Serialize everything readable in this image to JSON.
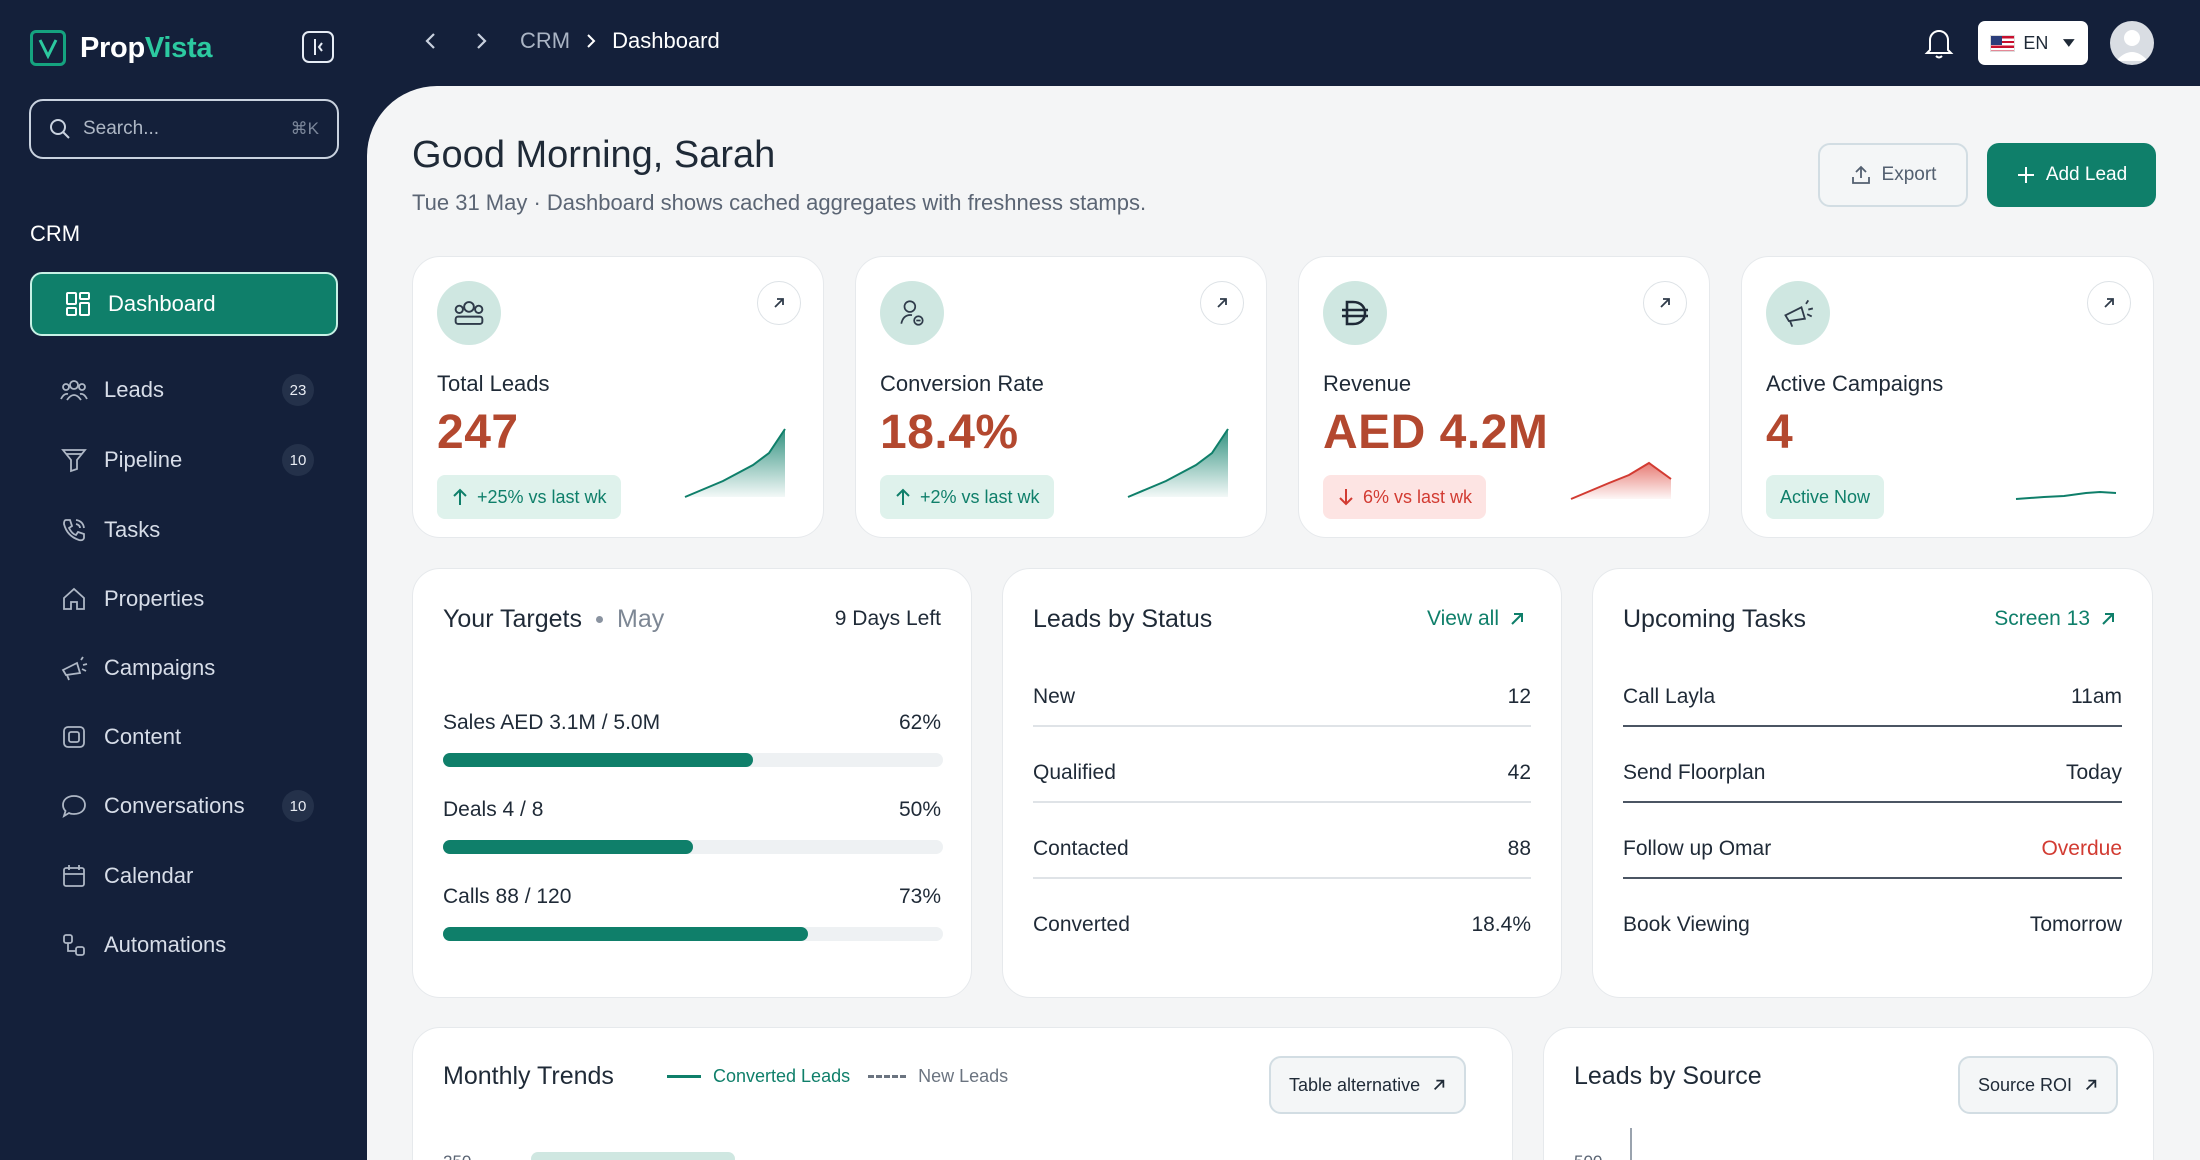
{
  "app": {
    "name_part1": "Prop",
    "name_part2": "Vista"
  },
  "sidebar": {
    "search": {
      "placeholder": "Search...",
      "shortcut": "⌘K"
    },
    "section": "CRM",
    "items": [
      {
        "label": "Dashboard",
        "icon": "grid-icon",
        "active": true
      },
      {
        "label": "Leads",
        "icon": "users-icon",
        "badge": "23"
      },
      {
        "label": "Pipeline",
        "icon": "funnel-icon",
        "badge": "10"
      },
      {
        "label": "Tasks",
        "icon": "phone-icon"
      },
      {
        "label": "Properties",
        "icon": "home-icon"
      },
      {
        "label": "Campaigns",
        "icon": "megaphone-icon"
      },
      {
        "label": "Content",
        "icon": "document-icon"
      },
      {
        "label": "Conversations",
        "icon": "chat-icon",
        "badge": "10"
      },
      {
        "label": "Calendar",
        "icon": "calendar-icon"
      },
      {
        "label": "Automations",
        "icon": "flow-icon"
      }
    ]
  },
  "topbar": {
    "breadcrumb": [
      "CRM",
      "Dashboard"
    ],
    "language": "EN"
  },
  "header": {
    "greeting": "Good Morning, Sarah",
    "subline": "Tue 31 May · Dashboard shows cached aggregates with freshness stamps.",
    "export_label": "Export",
    "add_label": "Add Lead"
  },
  "kpis": [
    {
      "label": "Total Leads",
      "value": "247",
      "delta": "+25% vs last wk",
      "trend": "up"
    },
    {
      "label": "Conversion Rate",
      "value": "18.4%",
      "delta": "+2% vs last wk",
      "trend": "up"
    },
    {
      "label": "Revenue",
      "value": "AED 4.2M",
      "delta": "6% vs last wk",
      "trend": "down"
    },
    {
      "label": "Active Campaigns",
      "value": "4",
      "delta": "Active Now",
      "trend": "flat"
    }
  ],
  "targets": {
    "title": "Your Targets",
    "month": "May",
    "days_left": "9 Days Left",
    "items": [
      {
        "label": "Sales AED 3.1M / 5.0M",
        "pct": "62%",
        "fraction": 0.62
      },
      {
        "label": "Deals 4 / 8",
        "pct": "50%",
        "fraction": 0.5
      },
      {
        "label": "Calls 88 / 120",
        "pct": "73%",
        "fraction": 0.73
      }
    ]
  },
  "status": {
    "title": "Leads by Status",
    "link": "View all",
    "rows": [
      {
        "label": "New",
        "value": "12"
      },
      {
        "label": "Qualified",
        "value": "42"
      },
      {
        "label": "Contacted",
        "value": "88"
      },
      {
        "label": "Converted",
        "value": "18.4%"
      }
    ]
  },
  "tasks": {
    "title": "Upcoming Tasks",
    "link": "Screen 13",
    "rows": [
      {
        "label": "Call Layla",
        "value": "11am"
      },
      {
        "label": "Send Floorplan",
        "value": "Today"
      },
      {
        "label": "Follow up Omar",
        "value": "Overdue"
      },
      {
        "label": "Book Viewing",
        "value": "Tomorrow"
      }
    ]
  },
  "trends": {
    "title": "Monthly Trends",
    "legend_converted": "Converted Leads",
    "legend_new": "New Leads",
    "button": "Table alternative",
    "partial_tick": "250"
  },
  "sources": {
    "title": "Leads by Source",
    "button": "Source ROI",
    "partial_tick": "500"
  },
  "colors": {
    "primary": "#0f7f6a",
    "accent_value": "#b3482f",
    "danger": "#d23b32",
    "sidebar_bg": "#14203a"
  }
}
